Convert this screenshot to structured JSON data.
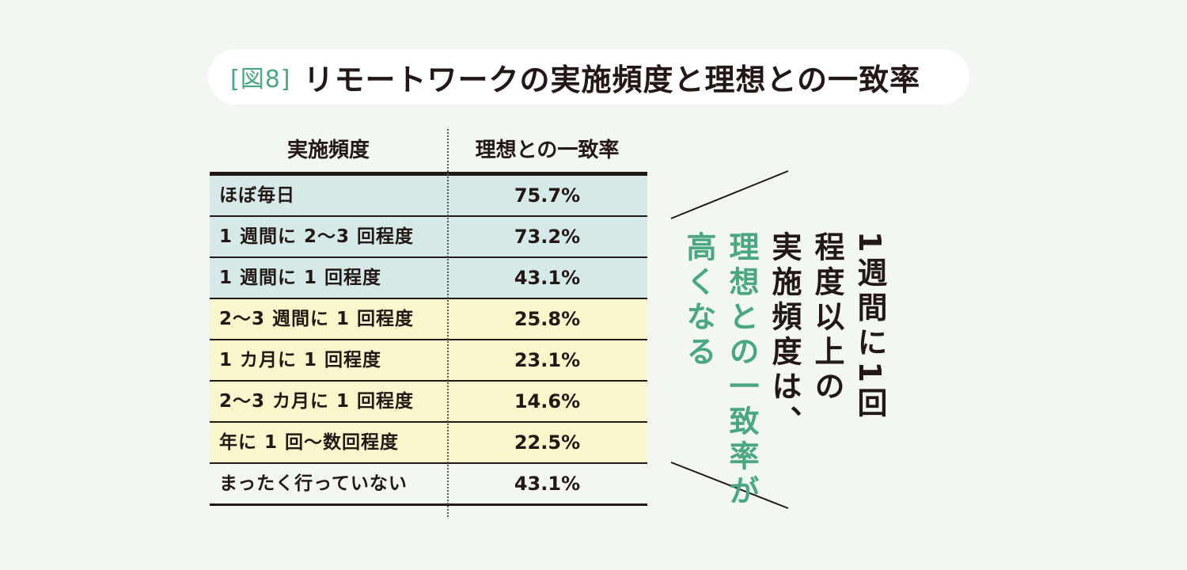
{
  "header": {
    "fig_label": "[図8]",
    "title": "リモートワークの実施頻度と理想との一致率"
  },
  "colors": {
    "accent_green": "#4aa77f",
    "blue_row": "#d4e9e8",
    "yellow_row": "#fbf7cc",
    "background": "#f3f7f1"
  },
  "chart_data": {
    "type": "table",
    "title": "リモートワークの実施頻度と理想との一致率",
    "columns": [
      "実施頻度",
      "理想との一致率"
    ],
    "rows": [
      {
        "category": "ほぼ毎日",
        "value": "75.7%",
        "group": "blue"
      },
      {
        "category": "1 週間に 2〜3 回程度",
        "value": "73.2%",
        "group": "blue"
      },
      {
        "category": "1 週間に 1 回程度",
        "value": "43.1%",
        "group": "blue"
      },
      {
        "category": "2〜3 週間に 1 回程度",
        "value": "25.8%",
        "group": "yellow"
      },
      {
        "category": "1 カ月に 1 回程度",
        "value": "23.1%",
        "group": "yellow"
      },
      {
        "category": "2〜3 カ月に 1 回程度",
        "value": "14.6%",
        "group": "yellow"
      },
      {
        "category": "年に 1 回〜数回程度",
        "value": "22.5%",
        "group": "yellow"
      },
      {
        "category": "まったく行っていない",
        "value": "43.1%",
        "group": "none"
      }
    ]
  },
  "callout": {
    "lines": [
      "1週間に1回",
      "程度以上の",
      "実施頻度は、",
      "理想との一致率が",
      "高くなる"
    ]
  }
}
